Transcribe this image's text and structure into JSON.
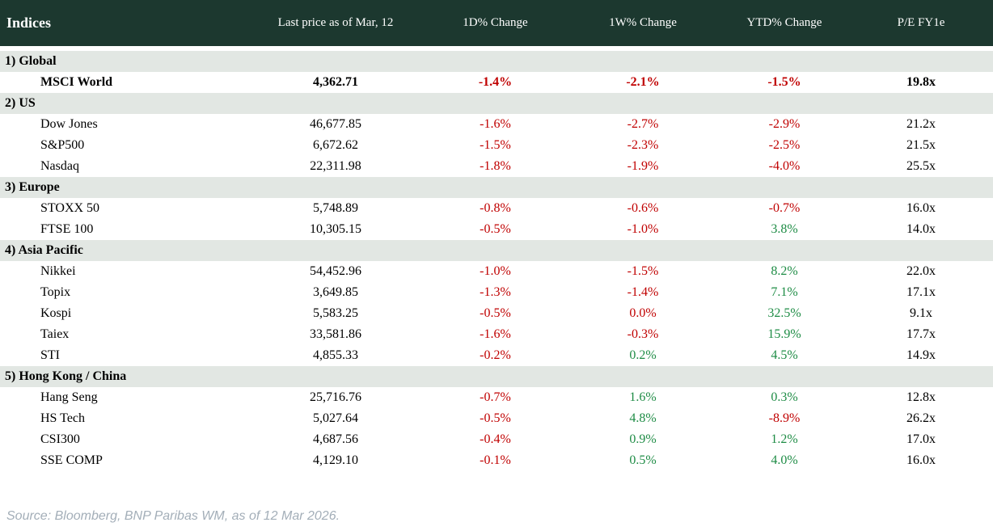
{
  "header": {
    "columns": [
      "Indices",
      "Last price as of Mar, 12",
      "1D% Change",
      "1W% Change",
      "YTD% Change",
      "P/E FY1e"
    ]
  },
  "colors": {
    "header_bg": "#1c382f",
    "section_bg": "#e2e7e3",
    "negative": "#c00000",
    "positive": "#1e8c45",
    "source_text": "#a3aeb8"
  },
  "sections": [
    {
      "label": "1) Global",
      "rows": [
        {
          "name": "MSCI World",
          "last": "4,362.71",
          "bold": true,
          "changes": [
            {
              "v": "-1.4%",
              "c": "neg"
            },
            {
              "v": "-2.1%",
              "c": "neg"
            },
            {
              "v": "-1.5%",
              "c": "neg"
            }
          ],
          "pe": "19.8x"
        }
      ]
    },
    {
      "label": "2) US",
      "rows": [
        {
          "name": "Dow Jones",
          "last": "46,677.85",
          "bold": false,
          "changes": [
            {
              "v": "-1.6%",
              "c": "neg"
            },
            {
              "v": "-2.7%",
              "c": "neg"
            },
            {
              "v": "-2.9%",
              "c": "neg"
            }
          ],
          "pe": "21.2x"
        },
        {
          "name": "S&P500",
          "last": "6,672.62",
          "bold": false,
          "changes": [
            {
              "v": "-1.5%",
              "c": "neg"
            },
            {
              "v": "-2.3%",
              "c": "neg"
            },
            {
              "v": "-2.5%",
              "c": "neg"
            }
          ],
          "pe": "21.5x"
        },
        {
          "name": "Nasdaq",
          "last": "22,311.98",
          "bold": false,
          "changes": [
            {
              "v": "-1.8%",
              "c": "neg"
            },
            {
              "v": "-1.9%",
              "c": "neg"
            },
            {
              "v": "-4.0%",
              "c": "neg"
            }
          ],
          "pe": "25.5x"
        }
      ]
    },
    {
      "label": "3) Europe",
      "rows": [
        {
          "name": "STOXX 50",
          "last": "5,748.89",
          "bold": false,
          "changes": [
            {
              "v": "-0.8%",
              "c": "neg"
            },
            {
              "v": "-0.6%",
              "c": "neg"
            },
            {
              "v": "-0.7%",
              "c": "neg"
            }
          ],
          "pe": "16.0x"
        },
        {
          "name": "FTSE 100",
          "last": "10,305.15",
          "bold": false,
          "changes": [
            {
              "v": "-0.5%",
              "c": "neg"
            },
            {
              "v": "-1.0%",
              "c": "neg"
            },
            {
              "v": "3.8%",
              "c": "pos"
            }
          ],
          "pe": "14.0x"
        }
      ]
    },
    {
      "label": "4) Asia Pacific",
      "rows": [
        {
          "name": "Nikkei",
          "last": "54,452.96",
          "bold": false,
          "changes": [
            {
              "v": "-1.0%",
              "c": "neg"
            },
            {
              "v": "-1.5%",
              "c": "neg"
            },
            {
              "v": "8.2%",
              "c": "pos"
            }
          ],
          "pe": "22.0x"
        },
        {
          "name": "Topix",
          "last": "3,649.85",
          "bold": false,
          "changes": [
            {
              "v": "-1.3%",
              "c": "neg"
            },
            {
              "v": "-1.4%",
              "c": "neg"
            },
            {
              "v": "7.1%",
              "c": "pos"
            }
          ],
          "pe": "17.1x"
        },
        {
          "name": "Kospi",
          "last": "5,583.25",
          "bold": false,
          "changes": [
            {
              "v": "-0.5%",
              "c": "neg"
            },
            {
              "v": "0.0%",
              "c": "neg"
            },
            {
              "v": "32.5%",
              "c": "pos"
            }
          ],
          "pe": "9.1x"
        },
        {
          "name": "Taiex",
          "last": "33,581.86",
          "bold": false,
          "changes": [
            {
              "v": "-1.6%",
              "c": "neg"
            },
            {
              "v": "-0.3%",
              "c": "neg"
            },
            {
              "v": "15.9%",
              "c": "pos"
            }
          ],
          "pe": "17.7x"
        },
        {
          "name": "STI",
          "last": "4,855.33",
          "bold": false,
          "changes": [
            {
              "v": "-0.2%",
              "c": "neg"
            },
            {
              "v": "0.2%",
              "c": "pos"
            },
            {
              "v": "4.5%",
              "c": "pos"
            }
          ],
          "pe": "14.9x"
        }
      ]
    },
    {
      "label": "5) Hong Kong / China",
      "rows": [
        {
          "name": "Hang Seng",
          "last": "25,716.76",
          "bold": false,
          "changes": [
            {
              "v": "-0.7%",
              "c": "neg"
            },
            {
              "v": "1.6%",
              "c": "pos"
            },
            {
              "v": "0.3%",
              "c": "pos"
            }
          ],
          "pe": "12.8x"
        },
        {
          "name": "HS Tech",
          "last": "5,027.64",
          "bold": false,
          "changes": [
            {
              "v": "-0.5%",
              "c": "neg"
            },
            {
              "v": "4.8%",
              "c": "pos"
            },
            {
              "v": "-8.9%",
              "c": "neg"
            }
          ],
          "pe": "26.2x"
        },
        {
          "name": "CSI300",
          "last": "4,687.56",
          "bold": false,
          "changes": [
            {
              "v": "-0.4%",
              "c": "neg"
            },
            {
              "v": "0.9%",
              "c": "pos"
            },
            {
              "v": "1.2%",
              "c": "pos"
            }
          ],
          "pe": "17.0x"
        },
        {
          "name": "SSE COMP",
          "last": "4,129.10",
          "bold": false,
          "changes": [
            {
              "v": "-0.1%",
              "c": "neg"
            },
            {
              "v": "0.5%",
              "c": "pos"
            },
            {
              "v": "4.0%",
              "c": "pos"
            }
          ],
          "pe": "16.0x"
        }
      ]
    }
  ],
  "source": "Source: Bloomberg, BNP Paribas WM, as of 12 Mar 2026."
}
